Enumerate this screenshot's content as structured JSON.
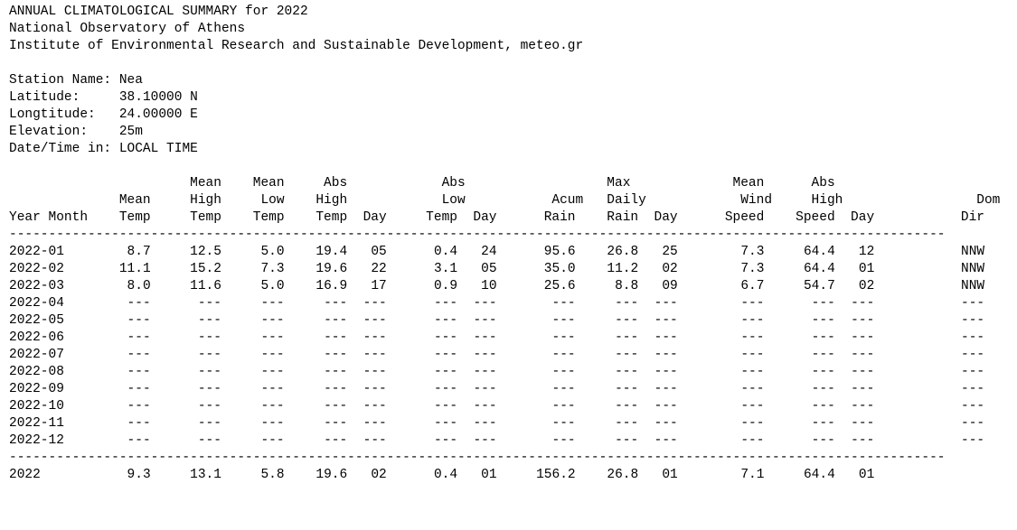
{
  "report": {
    "title": "ANNUAL CLIMATOLOGICAL SUMMARY for 2022",
    "organization": "National Observatory of Athens",
    "institute": "Institute of Environmental Research and Sustainable Development, meteo.gr"
  },
  "station": {
    "name_label": "Station Name:",
    "name": "Nea",
    "latitude_label": "Latitude:",
    "latitude": "38.10000 N",
    "longitude_label": "Longtitude:",
    "longitude": "24.00000 E",
    "elevation_label": "Elevation:",
    "elevation": "25m",
    "datetime_label": "Date/Time in:",
    "datetime": "LOCAL TIME"
  },
  "table": {
    "header_lines": [
      "                       Mean    Mean     Abs            Abs                  Max             Mean      Abs",
      "              Mean     High     Low    High            Low           Acum   Daily            Wind     High                 Dom",
      "Year Month    Temp     Temp    Temp    Temp  Day     Temp  Day      Rain    Rain  Day      Speed    Speed  Day           Dir"
    ],
    "separator": "-----------------------------------------------------------------------------------------------------------------------",
    "rows": [
      {
        "period": "2022-01",
        "mean_temp": "8.7",
        "mean_high": "12.5",
        "mean_low": "5.0",
        "abs_high": "19.4",
        "high_day": "05",
        "abs_low": "0.4",
        "low_day": "24",
        "rain": "95.6",
        "max_rain": "26.8",
        "rain_day": "25",
        "wind": "7.3",
        "gust": "64.4",
        "gust_day": "12",
        "dir": "NNW"
      },
      {
        "period": "2022-02",
        "mean_temp": "11.1",
        "mean_high": "15.2",
        "mean_low": "7.3",
        "abs_high": "19.6",
        "high_day": "22",
        "abs_low": "3.1",
        "low_day": "05",
        "rain": "35.0",
        "max_rain": "11.2",
        "rain_day": "02",
        "wind": "7.3",
        "gust": "64.4",
        "gust_day": "01",
        "dir": "NNW"
      },
      {
        "period": "2022-03",
        "mean_temp": "8.0",
        "mean_high": "11.6",
        "mean_low": "5.0",
        "abs_high": "16.9",
        "high_day": "17",
        "abs_low": "0.9",
        "low_day": "10",
        "rain": "25.6",
        "max_rain": "8.8",
        "rain_day": "09",
        "wind": "6.7",
        "gust": "54.7",
        "gust_day": "02",
        "dir": "NNW"
      },
      {
        "period": "2022-04",
        "mean_temp": "---",
        "mean_high": "---",
        "mean_low": "---",
        "abs_high": "---",
        "high_day": "---",
        "abs_low": "---",
        "low_day": "---",
        "rain": "---",
        "max_rain": "---",
        "rain_day": "---",
        "wind": "---",
        "gust": "---",
        "gust_day": "---",
        "dir": "---"
      },
      {
        "period": "2022-05",
        "mean_temp": "---",
        "mean_high": "---",
        "mean_low": "---",
        "abs_high": "---",
        "high_day": "---",
        "abs_low": "---",
        "low_day": "---",
        "rain": "---",
        "max_rain": "---",
        "rain_day": "---",
        "wind": "---",
        "gust": "---",
        "gust_day": "---",
        "dir": "---"
      },
      {
        "period": "2022-06",
        "mean_temp": "---",
        "mean_high": "---",
        "mean_low": "---",
        "abs_high": "---",
        "high_day": "---",
        "abs_low": "---",
        "low_day": "---",
        "rain": "---",
        "max_rain": "---",
        "rain_day": "---",
        "wind": "---",
        "gust": "---",
        "gust_day": "---",
        "dir": "---"
      },
      {
        "period": "2022-07",
        "mean_temp": "---",
        "mean_high": "---",
        "mean_low": "---",
        "abs_high": "---",
        "high_day": "---",
        "abs_low": "---",
        "low_day": "---",
        "rain": "---",
        "max_rain": "---",
        "rain_day": "---",
        "wind": "---",
        "gust": "---",
        "gust_day": "---",
        "dir": "---"
      },
      {
        "period": "2022-08",
        "mean_temp": "---",
        "mean_high": "---",
        "mean_low": "---",
        "abs_high": "---",
        "high_day": "---",
        "abs_low": "---",
        "low_day": "---",
        "rain": "---",
        "max_rain": "---",
        "rain_day": "---",
        "wind": "---",
        "gust": "---",
        "gust_day": "---",
        "dir": "---"
      },
      {
        "period": "2022-09",
        "mean_temp": "---",
        "mean_high": "---",
        "mean_low": "---",
        "abs_high": "---",
        "high_day": "---",
        "abs_low": "---",
        "low_day": "---",
        "rain": "---",
        "max_rain": "---",
        "rain_day": "---",
        "wind": "---",
        "gust": "---",
        "gust_day": "---",
        "dir": "---"
      },
      {
        "period": "2022-10",
        "mean_temp": "---",
        "mean_high": "---",
        "mean_low": "---",
        "abs_high": "---",
        "high_day": "---",
        "abs_low": "---",
        "low_day": "---",
        "rain": "---",
        "max_rain": "---",
        "rain_day": "---",
        "wind": "---",
        "gust": "---",
        "gust_day": "---",
        "dir": "---"
      },
      {
        "period": "2022-11",
        "mean_temp": "---",
        "mean_high": "---",
        "mean_low": "---",
        "abs_high": "---",
        "high_day": "---",
        "abs_low": "---",
        "low_day": "---",
        "rain": "---",
        "max_rain": "---",
        "rain_day": "---",
        "wind": "---",
        "gust": "---",
        "gust_day": "---",
        "dir": "---"
      },
      {
        "period": "2022-12",
        "mean_temp": "---",
        "mean_high": "---",
        "mean_low": "---",
        "abs_high": "---",
        "high_day": "---",
        "abs_low": "---",
        "low_day": "---",
        "rain": "---",
        "max_rain": "---",
        "rain_day": "---",
        "wind": "---",
        "gust": "---",
        "gust_day": "---",
        "dir": "---"
      }
    ],
    "total": {
      "period": "2022",
      "mean_temp": "9.3",
      "mean_high": "13.1",
      "mean_low": "5.8",
      "abs_high": "19.6",
      "high_day": "02",
      "abs_low": "0.4",
      "low_day": "01",
      "rain": "156.2",
      "max_rain": "26.8",
      "rain_day": "01",
      "wind": "7.1",
      "gust": "64.4",
      "gust_day": "01",
      "dir": ""
    }
  }
}
